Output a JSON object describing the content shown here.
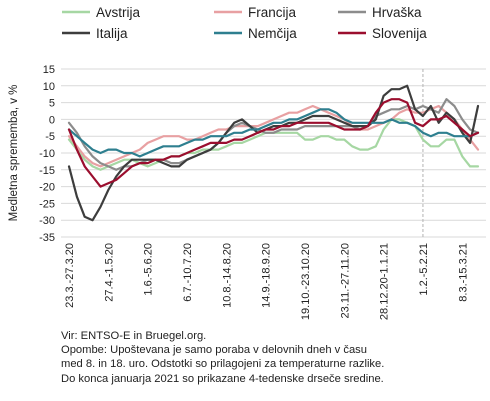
{
  "chart_data": {
    "type": "line",
    "ylabel": "Medletna sprememba, v %",
    "ylim": [
      -35,
      15
    ],
    "yticks": [
      15,
      10,
      5,
      0,
      -5,
      -10,
      -15,
      -20,
      -25,
      -30,
      -35
    ],
    "xticks": [
      "23.3.-27.3.20",
      "27.4.-1.5.20",
      "1.6.-5.6.20",
      "6.7.-10.7.20",
      "10.8.-14.8.20",
      "14.9.-18.9.20",
      "19.10.-23.10.20",
      "23.11.-27.11.20",
      "28.12.20-1.1.21",
      "1.2.-5.2.21",
      "8.3.-15.3.21"
    ],
    "xtick_positions": [
      0,
      5,
      10,
      15,
      20,
      25,
      30,
      35,
      40,
      45,
      50
    ],
    "vline_x": 45,
    "grid": "horizontal",
    "legend_position": "top",
    "series": [
      {
        "name": "Avstrija",
        "color": "#a6d7a3",
        "values": [
          -6,
          -9,
          -12,
          -14,
          -15,
          -14,
          -13,
          -12,
          -12,
          -13,
          -14,
          -13,
          -12,
          -11,
          -11,
          -10,
          -10,
          -9,
          -9,
          -9,
          -8,
          -7,
          -7,
          -6,
          -5,
          -4,
          -4,
          -4,
          -4,
          -4,
          -6,
          -6,
          -5,
          -5,
          -6,
          -6,
          -8,
          -9,
          -9,
          -8,
          -3,
          0,
          0,
          -1,
          -2,
          -6,
          -8,
          -8,
          -6,
          -6,
          -11,
          -14,
          -14
        ]
      },
      {
        "name": "Francija",
        "color": "#e8a0a2",
        "values": [
          -5,
          -8,
          -11,
          -13,
          -14,
          -13,
          -12,
          -11,
          -10,
          -9,
          -7,
          -6,
          -5,
          -5,
          -5,
          -6,
          -6,
          -5,
          -4,
          -3,
          -3,
          -2,
          -2,
          -2,
          -2,
          -1,
          0,
          1,
          2,
          2,
          3,
          4,
          3,
          2,
          1,
          0,
          -2,
          -3,
          -3,
          -2,
          -1,
          0,
          2,
          3,
          2,
          2,
          3,
          4,
          2,
          0,
          -3,
          -6,
          -9
        ]
      },
      {
        "name": "Hrvaška",
        "color": "#8c8c8c",
        "values": [
          -1,
          -4,
          -8,
          -11,
          -13,
          -14,
          -15,
          -14,
          -14,
          -13,
          -12,
          -12,
          -12,
          -13,
          -13,
          -12,
          -11,
          -10,
          -9,
          -7,
          -4,
          -2,
          -1,
          -2,
          -3,
          -4,
          -4,
          -3,
          -3,
          -3,
          -2,
          -2,
          -2,
          -2,
          -2,
          -2,
          -2,
          -3,
          -2,
          1,
          2,
          3,
          3,
          4,
          3,
          4,
          3,
          2,
          6,
          4,
          0,
          -3,
          -4
        ]
      },
      {
        "name": "Italija",
        "color": "#3d3d3d",
        "values": [
          -14,
          -23,
          -29,
          -30,
          -26,
          -21,
          -17,
          -14,
          -12,
          -12,
          -12,
          -12,
          -13,
          -14,
          -14,
          -12,
          -11,
          -10,
          -9,
          -7,
          -4,
          -1,
          0,
          -2,
          -4,
          -3,
          -2,
          -2,
          -1,
          -1,
          0,
          1,
          1,
          1,
          0,
          -1,
          -2,
          -2,
          -2,
          0,
          7,
          9,
          9,
          10,
          3,
          1,
          4,
          -1,
          2,
          0,
          -4,
          -7,
          4
        ]
      },
      {
        "name": "Nemčija",
        "color": "#2e7f8f",
        "values": [
          -3,
          -5,
          -7,
          -9,
          -10,
          -9,
          -9,
          -10,
          -10,
          -11,
          -10,
          -9,
          -8,
          -8,
          -8,
          -7,
          -6,
          -6,
          -5,
          -5,
          -5,
          -4,
          -4,
          -3,
          -3,
          -2,
          -1,
          -1,
          0,
          0,
          1,
          2,
          3,
          3,
          2,
          0,
          -1,
          -1,
          -1,
          -1,
          -1,
          0,
          -1,
          -1,
          -2,
          -4,
          -5,
          -4,
          -4,
          -5,
          -5,
          -5,
          -4
        ]
      },
      {
        "name": "Slovenija",
        "color": "#9b0e2e",
        "values": [
          -3,
          -9,
          -14,
          -17,
          -20,
          -19,
          -18,
          -16,
          -14,
          -13,
          -13,
          -12,
          -12,
          -11,
          -11,
          -10,
          -9,
          -8,
          -7,
          -7,
          -7,
          -6,
          -6,
          -5,
          -4,
          -3,
          -3,
          -2,
          -2,
          -1,
          -1,
          -1,
          -1,
          -1,
          -2,
          -3,
          -3,
          -3,
          -2,
          2,
          5,
          6,
          6,
          5,
          -1,
          -2,
          0,
          0,
          1,
          -1,
          -3,
          -5,
          -4
        ]
      }
    ]
  },
  "notes": {
    "source": "Vir: ENTSO-E in Bruegel.org.",
    "note_line1": "Opombe: Upoštevana je samo poraba v delovnih dneh v času",
    "note_line2": "med 8. in 18. uro. Odstotki so prilagojeni za temperaturne razlike.",
    "note_line3": "Do konca januarja 2021 so prikazane 4-tedenske drseče sredine."
  }
}
